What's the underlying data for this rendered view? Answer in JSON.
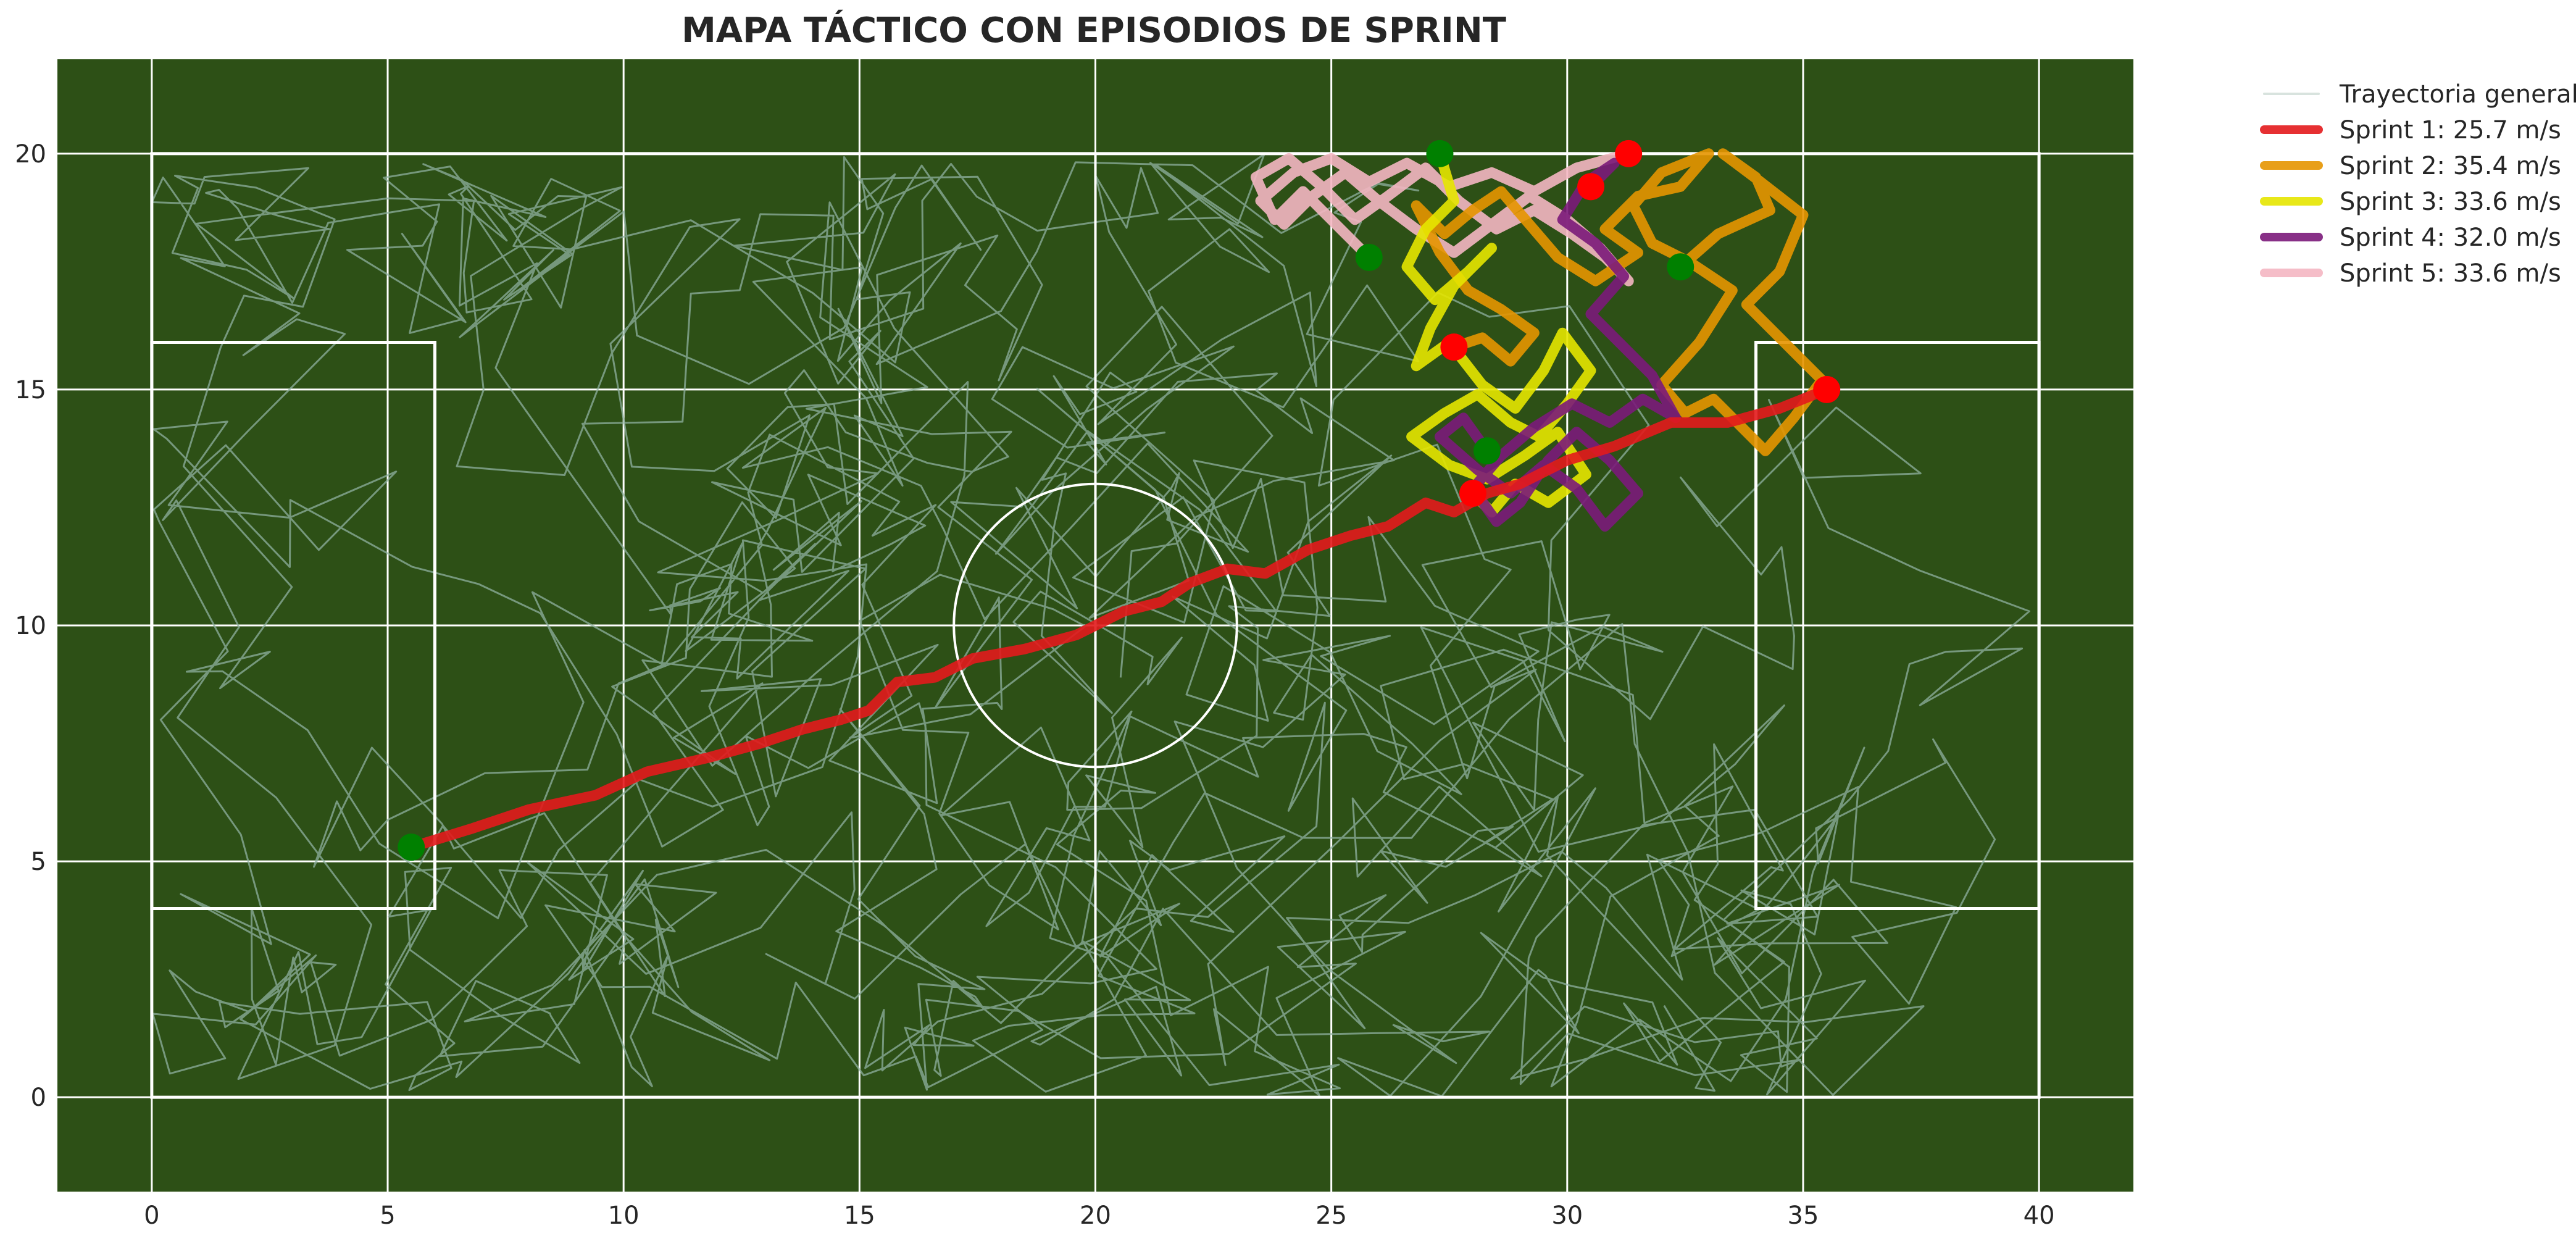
{
  "chart_data": {
    "type": "line",
    "title": "MAPA TÁCTICO CON EPISODIOS DE SPRINT",
    "xlabel": "",
    "ylabel": "",
    "xlim": [
      -2,
      42
    ],
    "ylim": [
      -2,
      22
    ],
    "x_ticks": [
      0,
      5,
      10,
      15,
      20,
      25,
      30,
      35,
      40
    ],
    "y_ticks": [
      0,
      5,
      10,
      15,
      20
    ],
    "grid": true,
    "legend_position": "outside-top-right",
    "colors": {
      "field": "#2d5016",
      "lines": "#ffffff",
      "trajectory": "#8fb0a0",
      "start_marker": "#008000",
      "end_marker": "#ff0000"
    },
    "pitch": {
      "outline": [
        [
          0,
          0
        ],
        [
          40,
          20
        ]
      ],
      "left_box": [
        [
          0,
          4
        ],
        [
          6,
          16
        ]
      ],
      "right_box": [
        [
          34,
          4
        ],
        [
          40,
          16
        ]
      ],
      "halfway_x": 20,
      "center_circle": {
        "center": [
          20,
          10
        ],
        "radius": 3
      }
    },
    "general_trajectory": {
      "name": "Trayectoria general",
      "seed": 7,
      "points": 900
    },
    "series": [
      {
        "name": "Sprint 1: 25.7 m/s",
        "color": "#e31a1c",
        "start": [
          5.5,
          5.3
        ],
        "end": [
          35.5,
          15.0
        ],
        "x": [
          5.5,
          6.8,
          8.0,
          9.4,
          10.5,
          11.8,
          12.9,
          13.8,
          14.6,
          15.2,
          15.8,
          16.6,
          17.4,
          18.5,
          19.6,
          20.6,
          21.4,
          22.0,
          22.8,
          23.6,
          24.5,
          25.4,
          26.2,
          27.0,
          27.6,
          28.3,
          29.0,
          30.0,
          31.0,
          32.2,
          33.4,
          34.5,
          35.5
        ],
        "y": [
          5.3,
          5.7,
          6.1,
          6.4,
          6.9,
          7.2,
          7.5,
          7.8,
          8.0,
          8.2,
          8.8,
          8.9,
          9.3,
          9.5,
          9.8,
          10.3,
          10.5,
          10.9,
          11.2,
          11.1,
          11.6,
          11.9,
          12.1,
          12.6,
          12.4,
          12.8,
          13.0,
          13.5,
          13.8,
          14.3,
          14.3,
          14.6,
          15.0
        ]
      },
      {
        "name": "Sprint 2: 35.4 m/s",
        "color": "#e69500",
        "start": [
          32.4,
          17.6
        ],
        "end": [
          27.6,
          15.9
        ],
        "x": [
          32.4,
          33.2,
          34.3,
          34.0,
          33.3,
          34.1,
          35.0,
          34.5,
          33.8,
          34.6,
          35.4,
          34.8,
          34.2,
          33.6,
          33.1,
          32.5,
          32.0,
          32.8,
          33.5,
          32.6,
          31.8,
          31.4,
          32.0,
          33.0,
          32.4,
          31.5,
          30.8,
          31.5,
          30.6,
          29.8,
          29.2,
          28.6,
          28.0,
          27.4,
          26.8,
          27.3,
          27.9,
          28.6,
          29.3,
          28.8,
          28.2,
          27.6
        ],
        "y": [
          17.6,
          18.3,
          18.8,
          19.5,
          20.0,
          19.4,
          18.7,
          17.5,
          16.8,
          16.0,
          15.2,
          14.4,
          13.7,
          14.3,
          14.8,
          14.5,
          15.1,
          16.0,
          17.1,
          17.7,
          18.1,
          18.9,
          19.6,
          20.0,
          19.3,
          19.1,
          18.4,
          17.9,
          17.3,
          17.8,
          18.5,
          19.2,
          18.8,
          18.3,
          18.9,
          17.9,
          17.1,
          16.7,
          16.2,
          15.6,
          16.1,
          15.9
        ]
      },
      {
        "name": "Sprint 3: 33.6 m/s",
        "color": "#e6e600",
        "start": [
          27.3,
          20.0
        ],
        "end": [
          28.0,
          12.8
        ],
        "x": [
          27.3,
          27.6,
          27.0,
          26.6,
          27.2,
          27.9,
          28.4,
          27.6,
          27.1,
          26.8,
          27.5,
          28.2,
          28.9,
          29.5,
          29.9,
          30.5,
          30.0,
          29.4,
          28.8,
          28.1,
          27.4,
          26.7,
          27.5,
          28.3,
          29.1,
          29.8,
          30.4,
          29.6,
          28.9,
          28.4,
          28.0
        ],
        "y": [
          20.0,
          19.0,
          18.4,
          17.6,
          16.9,
          17.5,
          18.0,
          17.2,
          16.3,
          15.5,
          16.0,
          15.1,
          14.6,
          15.4,
          16.2,
          15.4,
          14.7,
          14.0,
          14.3,
          14.9,
          14.5,
          14.0,
          13.4,
          13.1,
          13.6,
          14.1,
          13.2,
          12.6,
          13.0,
          12.4,
          12.8
        ]
      },
      {
        "name": "Sprint 4: 32.0 m/s",
        "color": "#7b1a7a",
        "start": [
          28.3,
          13.7
        ],
        "end": [
          30.5,
          19.3
        ],
        "x": [
          28.3,
          27.8,
          27.3,
          28.1,
          28.8,
          29.5,
          30.2,
          30.8,
          31.5,
          30.9,
          30.2,
          29.6,
          29.0,
          28.5,
          28.0,
          28.6,
          29.3,
          30.1,
          30.9,
          31.6,
          32.3,
          31.8,
          31.1,
          30.5,
          31.2,
          30.6,
          29.9,
          30.4,
          31.0,
          30.5
        ],
        "y": [
          13.7,
          14.4,
          14.0,
          13.3,
          12.8,
          13.4,
          12.9,
          12.1,
          12.8,
          13.5,
          14.1,
          13.5,
          12.6,
          12.2,
          12.9,
          13.6,
          14.2,
          14.7,
          14.3,
          14.8,
          14.4,
          15.3,
          16.0,
          16.6,
          17.4,
          18.1,
          18.6,
          19.4,
          19.8,
          19.3
        ]
      },
      {
        "name": "Sprint 5: 33.6 m/s",
        "color": "#f4b6c2",
        "start": [
          25.8,
          17.8
        ],
        "end": [
          31.3,
          20.0
        ],
        "x": [
          25.8,
          25.1,
          24.4,
          23.8,
          23.4,
          24.1,
          24.8,
          25.5,
          26.2,
          27.0,
          27.7,
          28.5,
          29.3,
          30.1,
          30.8,
          31.3,
          30.7,
          30.0,
          29.2,
          28.4,
          27.6,
          26.8,
          26.0,
          25.3,
          24.6,
          24.0,
          23.5,
          24.2,
          25.0,
          25.8,
          26.6,
          27.5,
          28.4,
          29.3,
          30.2,
          31.3
        ],
        "y": [
          17.8,
          18.5,
          19.2,
          18.6,
          19.5,
          19.9,
          19.3,
          18.6,
          19.1,
          19.7,
          19.0,
          18.4,
          18.8,
          18.3,
          17.8,
          17.3,
          18.0,
          18.6,
          19.1,
          18.5,
          17.9,
          18.4,
          19.0,
          19.6,
          19.1,
          18.5,
          19.0,
          19.6,
          19.9,
          19.4,
          19.8,
          19.3,
          19.6,
          19.2,
          19.7,
          20.0
        ]
      }
    ]
  }
}
